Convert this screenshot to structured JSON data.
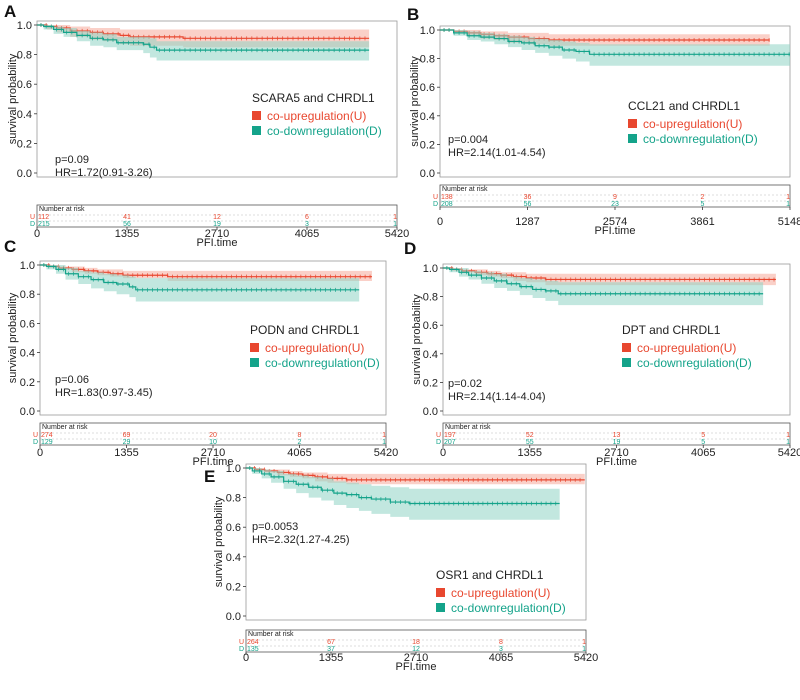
{
  "colors": {
    "up": "#e8472f",
    "down": "#14a38a",
    "up_band": "#f5a99a",
    "down_band": "#8fd4c4",
    "axis": "#222222"
  },
  "labels": {
    "y_axis": "survival probability",
    "x_axis": "PFI.time",
    "legend_up": "co-upregulation(U)",
    "legend_down": "co-downregulation(D)",
    "number_at_risk": "Number at risk",
    "row_u": "U",
    "row_d": "D"
  },
  "chart_data": [
    {
      "type": "line",
      "panel": "A",
      "title": "SCARA5 and CHRDL1",
      "xlabel": "PFI.time",
      "ylabel": "survival probability",
      "xlim": [
        0,
        5420
      ],
      "ylim": [
        0,
        1
      ],
      "xticks": [
        "0",
        "1355",
        "2710",
        "4065",
        "5420"
      ],
      "yticks": [
        "0.0",
        "0.2",
        "0.4",
        "0.6",
        "0.8",
        "1.0"
      ],
      "pvalue": "p=0.09",
      "hr": "HR=1.72(0.91-3.26)",
      "series": [
        {
          "name": "co-upregulation(U)",
          "x": [
            0,
            150,
            300,
            500,
            800,
            1000,
            1250,
            1400,
            1600,
            1900,
            2200,
            2600,
            3000,
            4000,
            4800,
            5000
          ],
          "y": [
            1,
            0.99,
            0.98,
            0.96,
            0.95,
            0.94,
            0.93,
            0.92,
            0.92,
            0.92,
            0.91,
            0.91,
            0.91,
            0.91,
            0.91,
            0.91
          ],
          "lower": [
            1,
            0.97,
            0.95,
            0.92,
            0.9,
            0.89,
            0.87,
            0.86,
            0.86,
            0.86,
            0.85,
            0.85,
            0.85,
            0.85,
            0.85,
            0.85
          ],
          "upper": [
            1,
            1,
            1,
            0.99,
            0.98,
            0.98,
            0.97,
            0.97,
            0.97,
            0.97,
            0.97,
            0.97,
            0.97,
            0.97,
            0.97,
            0.97
          ]
        },
        {
          "name": "co-downregulation(D)",
          "x": [
            0,
            100,
            250,
            400,
            600,
            800,
            1000,
            1200,
            1400,
            1600,
            1700,
            1800,
            2000,
            2500,
            3000,
            4000,
            5000
          ],
          "y": [
            1,
            0.99,
            0.97,
            0.95,
            0.93,
            0.91,
            0.9,
            0.88,
            0.88,
            0.87,
            0.85,
            0.83,
            0.83,
            0.83,
            0.83,
            0.83,
            0.83
          ],
          "lower": [
            1,
            0.97,
            0.94,
            0.92,
            0.89,
            0.86,
            0.85,
            0.83,
            0.83,
            0.81,
            0.78,
            0.76,
            0.76,
            0.76,
            0.76,
            0.76,
            0.76
          ],
          "upper": [
            1,
            1,
            0.99,
            0.98,
            0.96,
            0.95,
            0.94,
            0.92,
            0.92,
            0.92,
            0.91,
            0.89,
            0.89,
            0.89,
            0.89,
            0.89,
            0.89
          ]
        }
      ],
      "risk_u": [
        "112",
        "41",
        "12",
        "6",
        "1"
      ],
      "risk_d": [
        "215",
        "56",
        "19",
        "3",
        "1"
      ]
    },
    {
      "type": "line",
      "panel": "B",
      "title": "CCL21 and CHRDL1",
      "xlabel": "PFI.time",
      "ylabel": "survival probability",
      "xlim": [
        0,
        5148
      ],
      "ylim": [
        0,
        1
      ],
      "xticks": [
        "0",
        "1287",
        "2574",
        "3861",
        "5148"
      ],
      "yticks": [
        "0.0",
        "0.2",
        "0.4",
        "0.6",
        "0.8",
        "1.0"
      ],
      "pvalue": "p=0.004",
      "hr": "HR=2.14(1.01-4.54)",
      "series": [
        {
          "name": "co-upregulation(U)",
          "x": [
            0,
            200,
            400,
            600,
            800,
            1000,
            1300,
            1600,
            2000,
            3000,
            4000,
            4850
          ],
          "y": [
            1,
            0.99,
            0.98,
            0.97,
            0.96,
            0.95,
            0.94,
            0.93,
            0.93,
            0.93,
            0.93,
            0.93
          ],
          "lower": [
            1,
            0.98,
            0.96,
            0.94,
            0.93,
            0.91,
            0.9,
            0.89,
            0.89,
            0.89,
            0.89,
            0.89
          ],
          "upper": [
            1,
            1,
            1,
            0.99,
            0.99,
            0.98,
            0.98,
            0.97,
            0.97,
            0.97,
            0.97,
            0.97
          ]
        },
        {
          "name": "co-downregulation(D)",
          "x": [
            0,
            200,
            400,
            600,
            800,
            1000,
            1200,
            1400,
            1600,
            1800,
            2000,
            2200,
            2600,
            3000,
            4000,
            5148
          ],
          "y": [
            1,
            0.98,
            0.96,
            0.95,
            0.94,
            0.92,
            0.91,
            0.89,
            0.88,
            0.86,
            0.85,
            0.83,
            0.83,
            0.83,
            0.83,
            0.83
          ],
          "lower": [
            1,
            0.96,
            0.93,
            0.92,
            0.9,
            0.88,
            0.86,
            0.84,
            0.82,
            0.8,
            0.78,
            0.75,
            0.75,
            0.75,
            0.75,
            0.75
          ],
          "upper": [
            1,
            1,
            0.99,
            0.98,
            0.97,
            0.96,
            0.95,
            0.94,
            0.93,
            0.92,
            0.91,
            0.9,
            0.9,
            0.9,
            0.9,
            0.9
          ]
        }
      ],
      "risk_u": [
        "138",
        "36",
        "9",
        "2",
        "1"
      ],
      "risk_d": [
        "208",
        "56",
        "23",
        "5",
        "1"
      ]
    },
    {
      "type": "line",
      "panel": "C",
      "title": "PODN and CHRDL1",
      "xlabel": "PFI.time",
      "ylabel": "survival probability",
      "xlim": [
        0,
        5420
      ],
      "ylim": [
        0,
        1
      ],
      "xticks": [
        "0",
        "1355",
        "2710",
        "4065",
        "5420"
      ],
      "yticks": [
        "0.0",
        "0.2",
        "0.4",
        "0.6",
        "0.8",
        "1.0"
      ],
      "pvalue": "p=0.06",
      "hr": "HR=1.83(0.97-3.45)",
      "series": [
        {
          "name": "co-upregulation(U)",
          "x": [
            0,
            150,
            300,
            500,
            700,
            900,
            1100,
            1300,
            1600,
            2000,
            2500,
            3000,
            4000,
            5000,
            5200
          ],
          "y": [
            1,
            0.99,
            0.98,
            0.97,
            0.96,
            0.95,
            0.94,
            0.93,
            0.93,
            0.92,
            0.92,
            0.92,
            0.92,
            0.92,
            0.92
          ],
          "lower": [
            1,
            0.98,
            0.97,
            0.95,
            0.94,
            0.93,
            0.92,
            0.91,
            0.91,
            0.89,
            0.89,
            0.89,
            0.89,
            0.89,
            0.89
          ],
          "upper": [
            1,
            1,
            0.99,
            0.99,
            0.98,
            0.97,
            0.97,
            0.96,
            0.96,
            0.96,
            0.96,
            0.96,
            0.96,
            0.96,
            0.96
          ]
        },
        {
          "name": "co-downregulation(D)",
          "x": [
            0,
            100,
            250,
            400,
            600,
            800,
            1000,
            1200,
            1400,
            1500,
            1800,
            2200,
            3000,
            4000,
            5000
          ],
          "y": [
            1,
            0.99,
            0.97,
            0.94,
            0.92,
            0.9,
            0.88,
            0.87,
            0.85,
            0.83,
            0.83,
            0.83,
            0.83,
            0.83,
            0.83
          ],
          "lower": [
            1,
            0.97,
            0.94,
            0.9,
            0.87,
            0.84,
            0.82,
            0.8,
            0.78,
            0.75,
            0.75,
            0.75,
            0.75,
            0.75,
            0.75
          ],
          "upper": [
            1,
            1,
            1,
            0.98,
            0.96,
            0.95,
            0.94,
            0.93,
            0.92,
            0.91,
            0.91,
            0.91,
            0.91,
            0.91,
            0.91
          ]
        }
      ],
      "risk_u": [
        "274",
        "69",
        "20",
        "8",
        "1"
      ],
      "risk_d": [
        "129",
        "29",
        "10",
        "2",
        "1"
      ]
    },
    {
      "type": "line",
      "panel": "D",
      "title": "DPT and CHRDL1",
      "xlabel": "PFI.time",
      "ylabel": "survival probability",
      "xlim": [
        0,
        5420
      ],
      "ylim": [
        0,
        1
      ],
      "xticks": [
        "0",
        "1355",
        "2710",
        "4065",
        "5420"
      ],
      "yticks": [
        "0.0",
        "0.2",
        "0.4",
        "0.6",
        "0.8",
        "1.0"
      ],
      "pvalue": "p=0.02",
      "hr": "HR=2.14(1.14-4.04)",
      "series": [
        {
          "name": "co-upregulation(U)",
          "x": [
            0,
            150,
            300,
            500,
            700,
            900,
            1100,
            1300,
            1600,
            1800,
            2200,
            3000,
            4000,
            5000,
            5200
          ],
          "y": [
            1,
            0.99,
            0.98,
            0.97,
            0.96,
            0.95,
            0.94,
            0.93,
            0.92,
            0.92,
            0.92,
            0.92,
            0.92,
            0.92,
            0.92
          ],
          "lower": [
            1,
            0.98,
            0.97,
            0.95,
            0.94,
            0.93,
            0.91,
            0.9,
            0.88,
            0.88,
            0.88,
            0.88,
            0.88,
            0.88,
            0.88
          ],
          "upper": [
            1,
            1,
            0.99,
            0.99,
            0.98,
            0.97,
            0.97,
            0.96,
            0.96,
            0.96,
            0.96,
            0.96,
            0.96,
            0.96,
            0.96
          ]
        },
        {
          "name": "co-downregulation(D)",
          "x": [
            0,
            100,
            250,
            400,
            600,
            800,
            1000,
            1200,
            1400,
            1600,
            1800,
            2200,
            3000,
            4000,
            5000
          ],
          "y": [
            1,
            0.99,
            0.97,
            0.95,
            0.93,
            0.91,
            0.89,
            0.87,
            0.85,
            0.84,
            0.82,
            0.82,
            0.82,
            0.82,
            0.82
          ],
          "lower": [
            1,
            0.97,
            0.94,
            0.92,
            0.89,
            0.86,
            0.84,
            0.81,
            0.79,
            0.77,
            0.74,
            0.74,
            0.74,
            0.74,
            0.74
          ],
          "upper": [
            1,
            1,
            1,
            0.98,
            0.97,
            0.96,
            0.94,
            0.93,
            0.92,
            0.91,
            0.9,
            0.9,
            0.9,
            0.9,
            0.9
          ]
        }
      ],
      "risk_u": [
        "197",
        "52",
        "13",
        "5",
        "1"
      ],
      "risk_d": [
        "207",
        "55",
        "19",
        "5",
        "1"
      ]
    },
    {
      "type": "line",
      "panel": "E",
      "title": "OSR1 and CHRDL1",
      "xlabel": "PFI.time",
      "ylabel": "survival probability",
      "xlim": [
        0,
        5420
      ],
      "ylim": [
        0,
        1
      ],
      "xticks": [
        "0",
        "1355",
        "2710",
        "4065",
        "5420"
      ],
      "yticks": [
        "0.0",
        "0.2",
        "0.4",
        "0.6",
        "0.8",
        "1.0"
      ],
      "pvalue": "p=0.0053",
      "hr": "HR=2.32(1.27-4.25)",
      "series": [
        {
          "name": "co-upregulation(U)",
          "x": [
            0,
            150,
            300,
            500,
            700,
            900,
            1100,
            1300,
            1600,
            1900,
            2200,
            3000,
            4000,
            5000,
            5400
          ],
          "y": [
            1,
            0.99,
            0.98,
            0.97,
            0.96,
            0.95,
            0.94,
            0.93,
            0.92,
            0.92,
            0.92,
            0.92,
            0.92,
            0.92,
            0.92
          ],
          "lower": [
            1,
            0.98,
            0.97,
            0.95,
            0.94,
            0.93,
            0.91,
            0.9,
            0.89,
            0.89,
            0.89,
            0.89,
            0.89,
            0.89,
            0.89
          ],
          "upper": [
            1,
            1,
            0.99,
            0.99,
            0.98,
            0.97,
            0.97,
            0.96,
            0.96,
            0.96,
            0.96,
            0.96,
            0.96,
            0.96,
            0.96
          ]
        },
        {
          "name": "co-downregulation(D)",
          "x": [
            0,
            100,
            250,
            400,
            600,
            800,
            1000,
            1200,
            1400,
            1600,
            1800,
            2000,
            2300,
            2600,
            3000,
            4000,
            5000
          ],
          "y": [
            1,
            0.98,
            0.96,
            0.94,
            0.91,
            0.89,
            0.87,
            0.85,
            0.83,
            0.82,
            0.8,
            0.79,
            0.77,
            0.76,
            0.76,
            0.76,
            0.76
          ],
          "lower": [
            1,
            0.96,
            0.93,
            0.9,
            0.86,
            0.83,
            0.8,
            0.78,
            0.75,
            0.73,
            0.71,
            0.69,
            0.67,
            0.65,
            0.65,
            0.65,
            0.65
          ],
          "upper": [
            1,
            1,
            0.99,
            0.98,
            0.96,
            0.95,
            0.94,
            0.93,
            0.91,
            0.9,
            0.89,
            0.88,
            0.87,
            0.86,
            0.86,
            0.86,
            0.86
          ]
        }
      ],
      "risk_u": [
        "264",
        "67",
        "18",
        "8",
        "1"
      ],
      "risk_d": [
        "135",
        "37",
        "12",
        "3",
        "1"
      ]
    }
  ]
}
